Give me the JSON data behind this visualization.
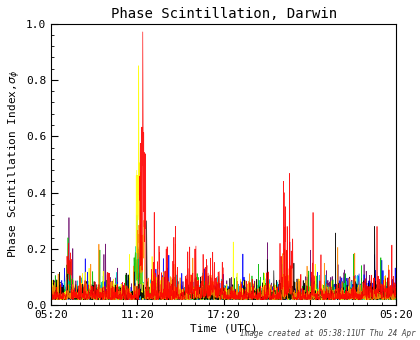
{
  "title": "Phase Scintillation, Darwin",
  "xlabel": "Time (UTC)",
  "xlim": [
    0,
    1440
  ],
  "ylim": [
    0.0,
    1.0
  ],
  "yticks": [
    0.0,
    0.2,
    0.4,
    0.6,
    0.8,
    1.0
  ],
  "xtick_labels": [
    "05:20",
    "11:20",
    "17:20",
    "23:20",
    "05:20"
  ],
  "xtick_positions": [
    0,
    360,
    720,
    1080,
    1440
  ],
  "background_color": "#ffffff",
  "plot_bg_color": "#ffffff",
  "annotation": "Image created at 05:38:11UT Thu 24 Apr",
  "annotation_fontsize": 5.5,
  "title_fontsize": 10,
  "label_fontsize": 8,
  "tick_fontsize": 8,
  "seed": 42,
  "n_points": 1440,
  "colors": [
    "#ff0000",
    "#ff8800",
    "#ffff00",
    "#00bb00",
    "#00cccc",
    "#0000ff",
    "#660066",
    "#000000"
  ]
}
